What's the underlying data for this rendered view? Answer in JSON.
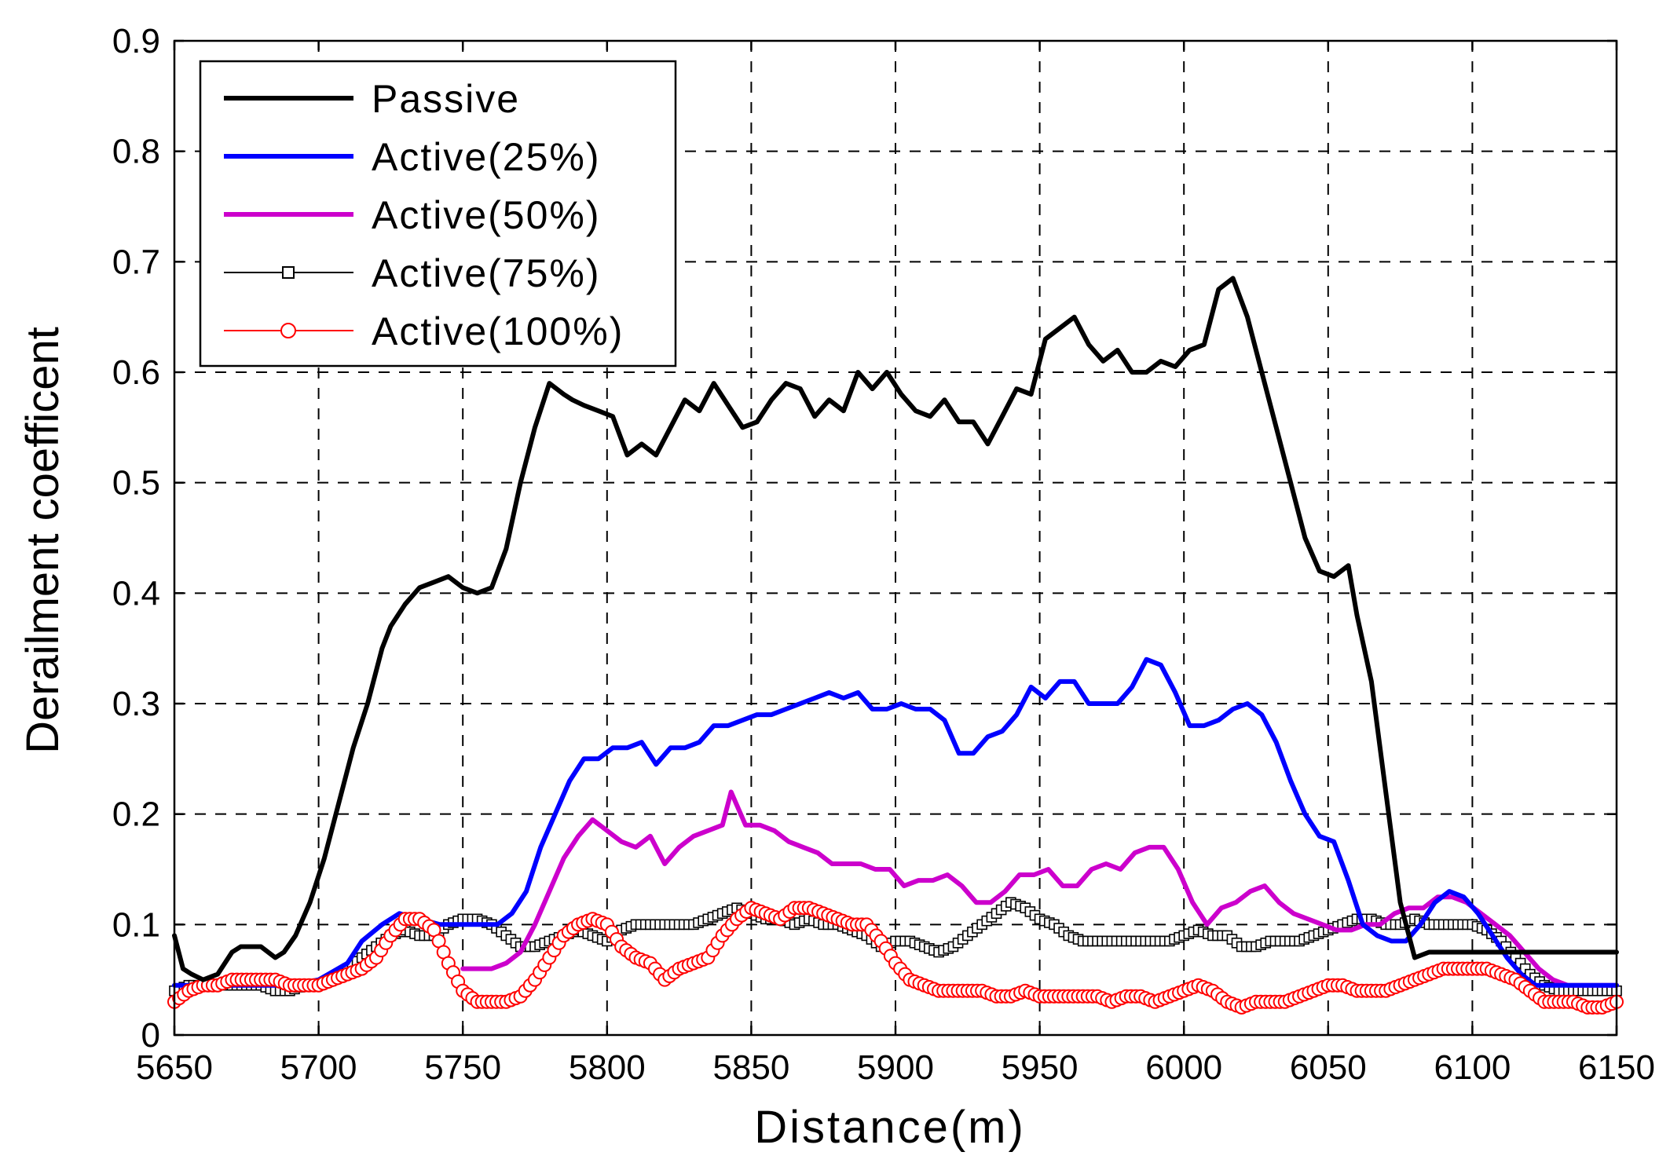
{
  "chart_data": {
    "type": "line",
    "title": "",
    "xlabel": "Distance(m)",
    "ylabel": "Derailment coefficent",
    "xlim": [
      5650,
      6150
    ],
    "ylim": [
      0,
      0.9
    ],
    "xticks": [
      "5650",
      "5700",
      "5750",
      "5800",
      "5850",
      "5900",
      "5950",
      "6000",
      "6050",
      "6100",
      "6150"
    ],
    "yticks": [
      "0",
      "0.1",
      "0.2",
      "0.3",
      "0.4",
      "0.5",
      "0.6",
      "0.7",
      "0.8",
      "0.9"
    ],
    "grid": true,
    "legend_position": "top-left",
    "series": [
      {
        "name": "Passive",
        "color": "#000000",
        "marker": "none",
        "x": [
          5650,
          5653,
          5656,
          5660,
          5665,
          5670,
          5673,
          5680,
          5685,
          5688,
          5692,
          5697,
          5702,
          5707,
          5712,
          5717,
          5722,
          5725,
          5730,
          5735,
          5740,
          5745,
          5750,
          5755,
          5760,
          5765,
          5770,
          5775,
          5780,
          5785,
          5788,
          5792,
          5797,
          5802,
          5807,
          5812,
          5817,
          5822,
          5827,
          5832,
          5837,
          5842,
          5847,
          5852,
          5857,
          5862,
          5867,
          5872,
          5877,
          5882,
          5887,
          5892,
          5897,
          5902,
          5907,
          5912,
          5917,
          5922,
          5927,
          5932,
          5937,
          5942,
          5947,
          5952,
          5957,
          5962,
          5967,
          5972,
          5977,
          5982,
          5987,
          5992,
          5997,
          6002,
          6007,
          6012,
          6017,
          6022,
          6027,
          6032,
          6037,
          6042,
          6047,
          6052,
          6057,
          6060,
          6065,
          6070,
          6075,
          6080,
          6085,
          6090,
          6095,
          6100,
          6105,
          6110,
          6115,
          6120,
          6125,
          6128,
          6132,
          6138,
          6145,
          6150
        ],
        "y": [
          0.09,
          0.06,
          0.055,
          0.05,
          0.055,
          0.075,
          0.08,
          0.08,
          0.07,
          0.075,
          0.09,
          0.12,
          0.16,
          0.21,
          0.26,
          0.3,
          0.35,
          0.37,
          0.39,
          0.405,
          0.41,
          0.415,
          0.405,
          0.4,
          0.405,
          0.44,
          0.5,
          0.55,
          0.59,
          0.58,
          0.575,
          0.57,
          0.565,
          0.56,
          0.525,
          0.535,
          0.525,
          0.55,
          0.575,
          0.565,
          0.59,
          0.57,
          0.55,
          0.555,
          0.575,
          0.59,
          0.585,
          0.56,
          0.575,
          0.565,
          0.6,
          0.585,
          0.6,
          0.58,
          0.565,
          0.56,
          0.575,
          0.555,
          0.555,
          0.535,
          0.56,
          0.585,
          0.58,
          0.63,
          0.64,
          0.65,
          0.625,
          0.61,
          0.62,
          0.6,
          0.6,
          0.61,
          0.605,
          0.62,
          0.625,
          0.675,
          0.685,
          0.65,
          0.6,
          0.55,
          0.5,
          0.45,
          0.42,
          0.415,
          0.425,
          0.38,
          0.32,
          0.22,
          0.12,
          0.07,
          0.075,
          0.075,
          0.075,
          0.075,
          0.075,
          0.075,
          0.075,
          0.075,
          0.075,
          0.075,
          0.075,
          0.075,
          0.075,
          0.075
        ]
      },
      {
        "name": "Active(25%)",
        "color": "#0000ff",
        "marker": "none",
        "x": [
          5650,
          5660,
          5670,
          5680,
          5690,
          5700,
          5710,
          5715,
          5722,
          5728,
          5735,
          5742,
          5750,
          5757,
          5762,
          5767,
          5772,
          5777,
          5782,
          5787,
          5792,
          5797,
          5802,
          5807,
          5812,
          5817,
          5822,
          5827,
          5832,
          5837,
          5842,
          5847,
          5852,
          5857,
          5862,
          5867,
          5872,
          5877,
          5882,
          5887,
          5892,
          5897,
          5902,
          5907,
          5912,
          5917,
          5922,
          5927,
          5932,
          5937,
          5942,
          5947,
          5952,
          5957,
          5962,
          5967,
          5972,
          5977,
          5982,
          5987,
          5992,
          5997,
          6002,
          6007,
          6012,
          6017,
          6022,
          6027,
          6032,
          6037,
          6042,
          6047,
          6052,
          6057,
          6062,
          6067,
          6072,
          6077,
          6082,
          6087,
          6092,
          6097,
          6102,
          6107,
          6112,
          6117,
          6122,
          6127,
          6132,
          6138,
          6145,
          6150
        ],
        "y": [
          0.045,
          0.045,
          0.045,
          0.045,
          0.045,
          0.05,
          0.065,
          0.085,
          0.1,
          0.11,
          0.105,
          0.1,
          0.1,
          0.1,
          0.1,
          0.11,
          0.13,
          0.17,
          0.2,
          0.23,
          0.25,
          0.25,
          0.26,
          0.26,
          0.265,
          0.245,
          0.26,
          0.26,
          0.265,
          0.28,
          0.28,
          0.285,
          0.29,
          0.29,
          0.295,
          0.3,
          0.305,
          0.31,
          0.305,
          0.31,
          0.295,
          0.295,
          0.3,
          0.295,
          0.295,
          0.285,
          0.255,
          0.255,
          0.27,
          0.275,
          0.29,
          0.315,
          0.305,
          0.32,
          0.32,
          0.3,
          0.3,
          0.3,
          0.315,
          0.34,
          0.335,
          0.31,
          0.28,
          0.28,
          0.285,
          0.295,
          0.3,
          0.29,
          0.265,
          0.23,
          0.2,
          0.18,
          0.175,
          0.14,
          0.1,
          0.09,
          0.085,
          0.085,
          0.1,
          0.12,
          0.13,
          0.125,
          0.11,
          0.09,
          0.07,
          0.055,
          0.045,
          0.045,
          0.045,
          0.045,
          0.045,
          0.045
        ]
      },
      {
        "name": "Active(50%)",
        "color": "#cc00cc",
        "marker": "none",
        "x": [
          5750,
          5755,
          5760,
          5765,
          5770,
          5775,
          5780,
          5785,
          5790,
          5795,
          5800,
          5805,
          5810,
          5815,
          5820,
          5825,
          5830,
          5835,
          5840,
          5843,
          5848,
          5853,
          5858,
          5863,
          5868,
          5873,
          5878,
          5883,
          5888,
          5893,
          5898,
          5903,
          5908,
          5913,
          5918,
          5923,
          5928,
          5933,
          5938,
          5943,
          5948,
          5953,
          5958,
          5963,
          5968,
          5973,
          5978,
          5983,
          5988,
          5993,
          5998,
          6003,
          6008,
          6013,
          6018,
          6023,
          6028,
          6033,
          6038,
          6043,
          6048,
          6053,
          6058,
          6063,
          6068,
          6073,
          6078,
          6083,
          6088,
          6093,
          6098,
          6103,
          6108,
          6113,
          6118,
          6123,
          6128,
          6133,
          6140,
          6150
        ],
        "y": [
          0.06,
          0.06,
          0.06,
          0.065,
          0.075,
          0.1,
          0.13,
          0.16,
          0.18,
          0.195,
          0.185,
          0.175,
          0.17,
          0.18,
          0.155,
          0.17,
          0.18,
          0.185,
          0.19,
          0.22,
          0.19,
          0.19,
          0.185,
          0.175,
          0.17,
          0.165,
          0.155,
          0.155,
          0.155,
          0.15,
          0.15,
          0.135,
          0.14,
          0.14,
          0.145,
          0.135,
          0.12,
          0.12,
          0.13,
          0.145,
          0.145,
          0.15,
          0.135,
          0.135,
          0.15,
          0.155,
          0.15,
          0.165,
          0.17,
          0.17,
          0.15,
          0.12,
          0.1,
          0.115,
          0.12,
          0.13,
          0.135,
          0.12,
          0.11,
          0.105,
          0.1,
          0.095,
          0.095,
          0.1,
          0.1,
          0.11,
          0.115,
          0.115,
          0.125,
          0.125,
          0.12,
          0.11,
          0.1,
          0.09,
          0.075,
          0.06,
          0.05,
          0.045,
          0.045,
          0.045
        ]
      },
      {
        "name": "Active(75%)",
        "color": "#000000",
        "marker": "square",
        "x": [
          5650,
          5655,
          5660,
          5665,
          5670,
          5675,
          5680,
          5685,
          5690,
          5695,
          5700,
          5705,
          5710,
          5715,
          5720,
          5725,
          5730,
          5735,
          5740,
          5745,
          5750,
          5755,
          5760,
          5765,
          5770,
          5775,
          5780,
          5785,
          5790,
          5795,
          5800,
          5805,
          5810,
          5815,
          5820,
          5825,
          5830,
          5835,
          5840,
          5845,
          5850,
          5855,
          5860,
          5865,
          5870,
          5875,
          5880,
          5885,
          5890,
          5895,
          5900,
          5905,
          5910,
          5915,
          5920,
          5925,
          5930,
          5935,
          5940,
          5945,
          5950,
          5955,
          5960,
          5965,
          5970,
          5975,
          5980,
          5985,
          5990,
          5995,
          6000,
          6005,
          6010,
          6015,
          6020,
          6025,
          6030,
          6035,
          6040,
          6045,
          6050,
          6055,
          6060,
          6065,
          6070,
          6075,
          6080,
          6085,
          6090,
          6095,
          6100,
          6105,
          6110,
          6115,
          6120,
          6125,
          6130,
          6135,
          6140,
          6145,
          6150
        ],
        "y": [
          0.04,
          0.045,
          0.045,
          0.045,
          0.045,
          0.045,
          0.045,
          0.04,
          0.04,
          0.045,
          0.045,
          0.05,
          0.06,
          0.07,
          0.08,
          0.09,
          0.095,
          0.09,
          0.09,
          0.1,
          0.105,
          0.105,
          0.1,
          0.09,
          0.08,
          0.08,
          0.085,
          0.09,
          0.095,
          0.09,
          0.085,
          0.095,
          0.1,
          0.1,
          0.1,
          0.1,
          0.1,
          0.105,
          0.11,
          0.115,
          0.11,
          0.105,
          0.105,
          0.1,
          0.105,
          0.1,
          0.1,
          0.095,
          0.09,
          0.08,
          0.085,
          0.085,
          0.08,
          0.075,
          0.08,
          0.09,
          0.1,
          0.11,
          0.12,
          0.115,
          0.105,
          0.1,
          0.09,
          0.085,
          0.085,
          0.085,
          0.085,
          0.085,
          0.085,
          0.085,
          0.09,
          0.095,
          0.09,
          0.09,
          0.08,
          0.08,
          0.085,
          0.085,
          0.085,
          0.09,
          0.095,
          0.1,
          0.105,
          0.105,
          0.1,
          0.1,
          0.105,
          0.1,
          0.1,
          0.1,
          0.1,
          0.095,
          0.085,
          0.07,
          0.055,
          0.045,
          0.04,
          0.04,
          0.04,
          0.04,
          0.04
        ]
      },
      {
        "name": "Active(100%)",
        "color": "#ff0000",
        "marker": "circle",
        "x": [
          5650,
          5655,
          5660,
          5665,
          5670,
          5675,
          5680,
          5685,
          5690,
          5695,
          5700,
          5705,
          5710,
          5715,
          5720,
          5725,
          5730,
          5735,
          5740,
          5745,
          5750,
          5755,
          5760,
          5765,
          5770,
          5775,
          5780,
          5785,
          5790,
          5795,
          5800,
          5805,
          5810,
          5815,
          5820,
          5825,
          5830,
          5835,
          5840,
          5845,
          5850,
          5855,
          5860,
          5865,
          5870,
          5875,
          5880,
          5885,
          5890,
          5895,
          5900,
          5905,
          5910,
          5915,
          5920,
          5925,
          5930,
          5935,
          5940,
          5945,
          5950,
          5955,
          5960,
          5965,
          5970,
          5975,
          5980,
          5985,
          5990,
          5995,
          6000,
          6005,
          6010,
          6015,
          6020,
          6025,
          6030,
          6035,
          6040,
          6045,
          6050,
          6055,
          6060,
          6065,
          6070,
          6075,
          6080,
          6085,
          6090,
          6095,
          6100,
          6105,
          6110,
          6115,
          6120,
          6125,
          6130,
          6135,
          6140,
          6145,
          6150
        ],
        "y": [
          0.03,
          0.04,
          0.045,
          0.045,
          0.05,
          0.05,
          0.05,
          0.05,
          0.045,
          0.045,
          0.045,
          0.05,
          0.055,
          0.06,
          0.07,
          0.09,
          0.105,
          0.105,
          0.095,
          0.065,
          0.04,
          0.03,
          0.03,
          0.03,
          0.035,
          0.05,
          0.07,
          0.09,
          0.1,
          0.105,
          0.1,
          0.08,
          0.07,
          0.065,
          0.05,
          0.06,
          0.065,
          0.07,
          0.09,
          0.105,
          0.115,
          0.11,
          0.105,
          0.115,
          0.115,
          0.11,
          0.105,
          0.1,
          0.1,
          0.085,
          0.065,
          0.05,
          0.045,
          0.04,
          0.04,
          0.04,
          0.04,
          0.035,
          0.035,
          0.04,
          0.035,
          0.035,
          0.035,
          0.035,
          0.035,
          0.03,
          0.035,
          0.035,
          0.03,
          0.035,
          0.04,
          0.045,
          0.04,
          0.03,
          0.025,
          0.03,
          0.03,
          0.03,
          0.035,
          0.04,
          0.045,
          0.045,
          0.04,
          0.04,
          0.04,
          0.045,
          0.05,
          0.055,
          0.06,
          0.06,
          0.06,
          0.06,
          0.055,
          0.05,
          0.04,
          0.03,
          0.03,
          0.03,
          0.025,
          0.025,
          0.03
        ]
      }
    ]
  }
}
